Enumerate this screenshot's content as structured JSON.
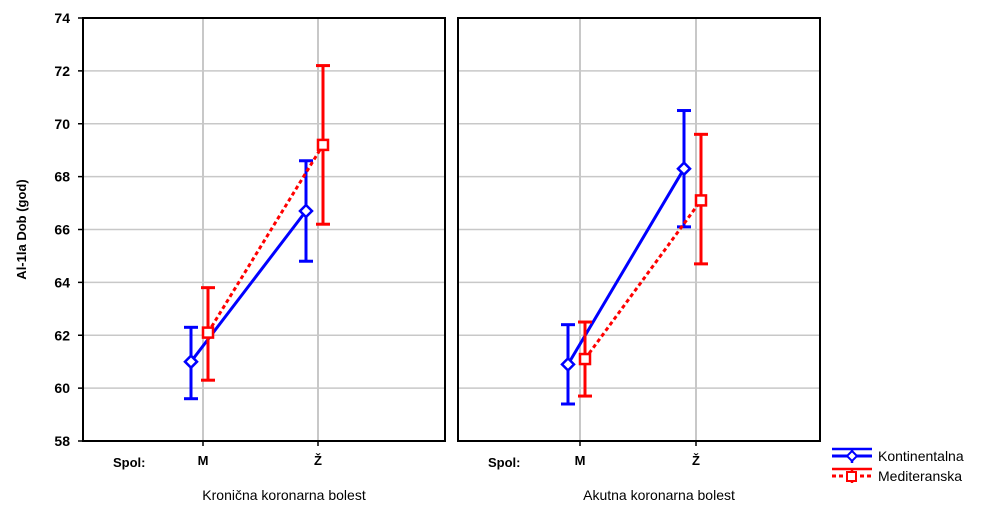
{
  "chart_data": {
    "type": "line",
    "ylabel": "Al-1la Dob (god)",
    "ylim": [
      58,
      74
    ],
    "yticks": [
      74,
      72,
      70,
      68,
      66,
      64,
      62,
      60,
      58
    ],
    "ytick_labels": [
      "74",
      "72",
      "70",
      "68",
      "66",
      "64",
      "62",
      "60",
      "58"
    ],
    "x_factor_label": "Spol:",
    "categories": [
      "M",
      "Ž"
    ],
    "grid": true,
    "legend_position": "bottom-right",
    "panels": [
      {
        "xlabel": "Kronična koronarna bolest",
        "series": [
          {
            "name": "Kontinentalna",
            "color": "#0000ff",
            "marker": "diamond",
            "line": "solid",
            "values": [
              61.0,
              66.7
            ],
            "err_low": [
              59.6,
              64.8
            ],
            "err_high": [
              62.3,
              68.6
            ]
          },
          {
            "name": "Mediteranska",
            "color": "#ff0000",
            "marker": "square",
            "line": "dashed",
            "values": [
              62.1,
              69.2
            ],
            "err_low": [
              60.3,
              66.2
            ],
            "err_high": [
              63.8,
              72.2
            ]
          }
        ]
      },
      {
        "xlabel": "Akutna koronarna bolest",
        "series": [
          {
            "name": "Kontinentalna",
            "color": "#0000ff",
            "marker": "diamond",
            "line": "solid",
            "values": [
              60.9,
              68.3
            ],
            "err_low": [
              59.4,
              66.1
            ],
            "err_high": [
              62.4,
              70.5
            ]
          },
          {
            "name": "Mediteranska",
            "color": "#ff0000",
            "marker": "square",
            "line": "dashed",
            "values": [
              61.1,
              67.1
            ],
            "err_low": [
              59.7,
              64.7
            ],
            "err_high": [
              62.5,
              69.6
            ]
          }
        ]
      }
    ],
    "legend": [
      {
        "name": "Kontinentalna",
        "color": "#0000ff",
        "marker": "diamond",
        "line": "solid"
      },
      {
        "name": "Mediteranska",
        "color": "#ff0000",
        "marker": "square",
        "line": "dashed"
      }
    ]
  }
}
